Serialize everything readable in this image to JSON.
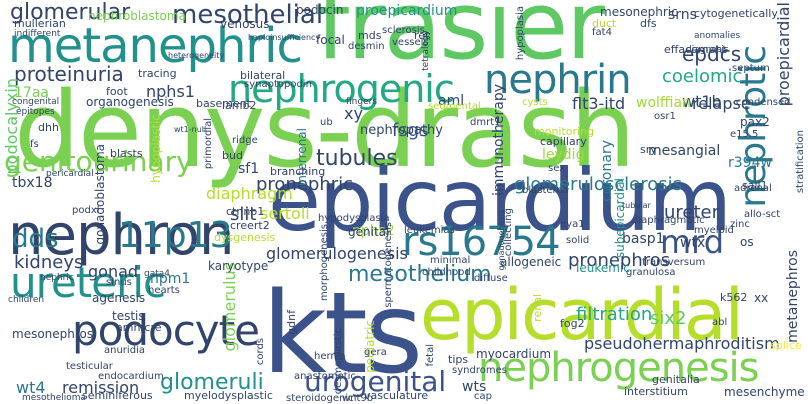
{
  "word_cloud": {
    "palette": {
      "green": "#7ad151",
      "purple": "#482878",
      "navy": "#3b528b",
      "teal": "#21918c",
      "sea": "#2a788e",
      "mint": "#5ec962",
      "lime": "#b5de2b",
      "yellow": "#fde725",
      "chart": "#addc30",
      "cyan": "#22a884",
      "olive": "#a0da39",
      "indigo": "#414487",
      "dark": "#440154"
    },
    "words": [
      {
        "text": "denys-drash",
        "color": "#7ad151"
      },
      {
        "text": "frasier",
        "color": "#5ec962"
      },
      {
        "text": "epicardium",
        "color": "#3b528b"
      },
      {
        "text": "kts",
        "color": "#3b528b"
      },
      {
        "text": "epicardial",
        "color": "#b5de2b"
      },
      {
        "text": "metanephric",
        "color": "#21918c"
      },
      {
        "text": "nephron",
        "color": "#31446b"
      },
      {
        "text": "nephrogenic",
        "color": "#22a884"
      },
      {
        "text": "nephrin",
        "color": "#2a788e"
      },
      {
        "text": "podocyte",
        "color": "#31446b"
      },
      {
        "text": "ureteric",
        "color": "#21918c"
      },
      {
        "text": "nephrogenesis",
        "color": "#7ad151"
      },
      {
        "text": "nephrotic",
        "color": "#2a788e"
      },
      {
        "text": "rs16754",
        "color": "#2a788e"
      },
      {
        "text": "11p13",
        "color": "#2a788e"
      },
      {
        "text": "dds",
        "color": "#2a788e"
      },
      {
        "text": "mrd",
        "color": "#3b528b"
      },
      {
        "text": "genitourinary",
        "color": "#7ad151"
      },
      {
        "text": "glomerular",
        "color": "#31446b"
      },
      {
        "text": "mesothelial",
        "color": "#31446b"
      },
      {
        "text": "urogenital",
        "color": "#3b528b"
      },
      {
        "text": "glomeruli",
        "color": "#21918c"
      },
      {
        "text": "mesothelium",
        "color": "#2a788e"
      },
      {
        "text": "proteinuria",
        "color": "#31446b"
      },
      {
        "text": "coelomic",
        "color": "#22a884"
      },
      {
        "text": "glomerulosclerosis",
        "color": "#2a788e"
      },
      {
        "text": "tubules",
        "color": "#31446b"
      },
      {
        "text": "epdcs",
        "color": "#31446b"
      },
      {
        "text": "wt1b",
        "color": "#31446b"
      },
      {
        "text": "relapse",
        "color": "#31446b"
      },
      {
        "text": "pronephros",
        "color": "#31446b"
      },
      {
        "text": "filtration",
        "color": "#22a884"
      },
      {
        "text": "six2",
        "color": "#5ec962"
      },
      {
        "text": "kidneys",
        "color": "#31446b"
      },
      {
        "text": "sertoli",
        "color": "#b5de2b"
      },
      {
        "text": "slit",
        "color": "#31446b"
      },
      {
        "text": "pronephric",
        "color": "#31446b"
      },
      {
        "text": "fsgs",
        "color": "#3b528b"
      },
      {
        "text": "podocalyxin",
        "color": "#5ec962"
      },
      {
        "text": "proepicardium",
        "color": "#21918c"
      },
      {
        "text": "proepicardial",
        "color": "#31446b"
      },
      {
        "text": "glomerulogenesis",
        "color": "#31446b"
      },
      {
        "text": "diaphragm",
        "color": "#b5de2b"
      },
      {
        "text": "wt4",
        "color": "#2a788e"
      },
      {
        "text": "remission",
        "color": "#31446b"
      },
      {
        "text": "gonad",
        "color": "#31446b"
      },
      {
        "text": "nphs1",
        "color": "#31446b"
      },
      {
        "text": "nphs2",
        "color": "#a0da39"
      },
      {
        "text": "basp1",
        "color": "#31446b"
      },
      {
        "text": "ureter",
        "color": "#31446b"
      },
      {
        "text": "mesangial",
        "color": "#31446b"
      },
      {
        "text": "pseudohermaphroditism",
        "color": "#31446b"
      },
      {
        "text": "flt3-itd",
        "color": "#31446b"
      },
      {
        "text": "aml",
        "color": "#31446b"
      },
      {
        "text": "xy",
        "color": "#31446b"
      },
      {
        "text": "sf1",
        "color": "#31446b"
      },
      {
        "text": "r394w",
        "color": "#2a788e"
      },
      {
        "text": "tbx18",
        "color": "#31446b"
      },
      {
        "text": "17aa",
        "color": "#7ad151"
      },
      {
        "text": "npm1",
        "color": "#2a788e"
      },
      {
        "text": "wtx",
        "color": "#31446b"
      },
      {
        "text": "mesonephric",
        "color": "#31446b"
      },
      {
        "text": "mesonephros",
        "color": "#31446b"
      },
      {
        "text": "srns",
        "color": "#31446b"
      },
      {
        "text": "wolffian",
        "color": "#a0da39"
      },
      {
        "text": "leydig",
        "color": "#a0da39"
      },
      {
        "text": "immunotherapy",
        "color": "#31446b"
      },
      {
        "text": "nephropathy",
        "color": "#31446b"
      },
      {
        "text": "coronary",
        "color": "#2a788e"
      },
      {
        "text": "metanephros",
        "color": "#31446b"
      },
      {
        "text": "nephroblastoma",
        "color": "#7ad151"
      },
      {
        "text": "mesenchyme",
        "color": "#31446b"
      },
      {
        "text": "organogenesis",
        "color": "#31446b"
      },
      {
        "text": "podocin",
        "color": "#31446b"
      },
      {
        "text": "venosus",
        "color": "#31446b"
      },
      {
        "text": "mullerian",
        "color": "#31446b"
      },
      {
        "text": "focal",
        "color": "#31446b"
      },
      {
        "text": "glomerulus",
        "color": "#7ad151"
      },
      {
        "text": "gonadoblastoma",
        "color": "#31446b"
      },
      {
        "text": "allogeneic",
        "color": "#31446b"
      },
      {
        "text": "genital",
        "color": "#31446b"
      },
      {
        "text": "leukemic",
        "color": "#21918c"
      },
      {
        "text": "testis",
        "color": "#31446b"
      },
      {
        "text": "agenesis",
        "color": "#31446b"
      },
      {
        "text": "karyotype",
        "color": "#31446b"
      },
      {
        "text": "subepicardial",
        "color": "#21918c"
      },
      {
        "text": "pediatric",
        "color": "#b5de2b"
      },
      {
        "text": "myocardium",
        "color": "#31446b"
      },
      {
        "text": "seminiferous",
        "color": "#31446b"
      },
      {
        "text": "myelodysplastic",
        "color": "#31446b"
      },
      {
        "text": "vasculature",
        "color": "#31446b"
      },
      {
        "text": "wts",
        "color": "#31446b"
      },
      {
        "text": "genitalia",
        "color": "#31446b"
      },
      {
        "text": "interstitium",
        "color": "#31446b"
      },
      {
        "text": "amh-cre",
        "color": "#31446b"
      },
      {
        "text": "foot",
        "color": "#31446b"
      },
      {
        "text": "basement",
        "color": "#31446b"
      },
      {
        "text": "bilateral",
        "color": "#31446b"
      },
      {
        "text": "tracing",
        "color": "#31446b"
      },
      {
        "text": "synaptopodin",
        "color": "#31446b"
      },
      {
        "text": "effacement",
        "color": "#31446b"
      },
      {
        "text": "cytogenetically",
        "color": "#31446b"
      },
      {
        "text": "pax2",
        "color": "#31446b"
      },
      {
        "text": "sall1",
        "color": "#31446b"
      },
      {
        "text": "k562",
        "color": "#31446b"
      },
      {
        "text": "sry",
        "color": "#31446b"
      },
      {
        "text": "capillary",
        "color": "#31446b"
      },
      {
        "text": "monitoring",
        "color": "#b5de2b"
      },
      {
        "text": "interrenal",
        "color": "#2a788e"
      },
      {
        "text": "hypoplastic",
        "color": "#b5de2b"
      },
      {
        "text": "branching",
        "color": "#31446b"
      },
      {
        "text": "blasts",
        "color": "#31446b"
      },
      {
        "text": "bud",
        "color": "#31446b"
      },
      {
        "text": "ctnnb1",
        "color": "#31446b"
      },
      {
        "text": "creert2",
        "color": "#31446b"
      },
      {
        "text": "dysgenesis",
        "color": "#b5de2b"
      },
      {
        "text": "lamb2",
        "color": "#31446b"
      },
      {
        "text": "gdnf",
        "color": "#31446b"
      },
      {
        "text": "leukemias",
        "color": "#31446b"
      },
      {
        "text": "hypodysplasia",
        "color": "#31446b"
      },
      {
        "text": "ret",
        "color": "#31446b"
      },
      {
        "text": "desmin",
        "color": "#31446b"
      },
      {
        "text": "vessels",
        "color": "#31446b"
      },
      {
        "text": "mds",
        "color": "#31446b"
      },
      {
        "text": "sclerosis",
        "color": "#31446b"
      },
      {
        "text": "duct",
        "color": "#b5de2b"
      },
      {
        "text": "dfs",
        "color": "#31446b"
      },
      {
        "text": "fat4",
        "color": "#31446b"
      },
      {
        "text": "septum",
        "color": "#31446b"
      },
      {
        "text": "condensed",
        "color": "#31446b"
      },
      {
        "text": "stratification",
        "color": "#31446b"
      },
      {
        "text": "adrenal",
        "color": "#31446b"
      },
      {
        "text": "zinc",
        "color": "#31446b"
      },
      {
        "text": "os",
        "color": "#31446b"
      },
      {
        "text": "xx",
        "color": "#31446b"
      },
      {
        "text": "abl",
        "color": "#31446b"
      },
      {
        "text": "splice",
        "color": "#fde725"
      },
      {
        "text": "transversum",
        "color": "#31446b"
      },
      {
        "text": "solid",
        "color": "#31446b"
      },
      {
        "text": "eya1",
        "color": "#31446b"
      },
      {
        "text": "myeloid",
        "color": "#31446b"
      },
      {
        "text": "allo-sct",
        "color": "#31446b"
      },
      {
        "text": "diaphragmatic",
        "color": "#31446b"
      },
      {
        "text": "granulosa",
        "color": "#31446b"
      },
      {
        "text": "fog2",
        "color": "#31446b"
      },
      {
        "text": "renal",
        "color": "#b5de2b"
      },
      {
        "text": "tips",
        "color": "#31446b"
      },
      {
        "text": "fetal",
        "color": "#31446b"
      },
      {
        "text": "gera",
        "color": "#31446b"
      },
      {
        "text": "hernia",
        "color": "#31446b"
      },
      {
        "text": "steroidogenic",
        "color": "#31446b"
      },
      {
        "text": "wnt9b",
        "color": "#31446b"
      },
      {
        "text": "cords",
        "color": "#31446b"
      },
      {
        "text": "desmoplastic",
        "color": "#31446b"
      },
      {
        "text": "anastomotic",
        "color": "#31446b"
      },
      {
        "text": "syndromes",
        "color": "#31446b"
      },
      {
        "text": "cap",
        "color": "#31446b"
      },
      {
        "text": "testicular",
        "color": "#31446b"
      },
      {
        "text": "endocardium",
        "color": "#31446b"
      },
      {
        "text": "anuridia",
        "color": "#31446b"
      },
      {
        "text": "mesothelioma",
        "color": "#31446b"
      },
      {
        "text": "sinus",
        "color": "#31446b"
      },
      {
        "text": "hearts",
        "color": "#31446b"
      },
      {
        "text": "childhood",
        "color": "#31446b"
      },
      {
        "text": "minimal",
        "color": "#31446b"
      },
      {
        "text": "collecting",
        "color": "#31446b"
      },
      {
        "text": "diffuse",
        "color": "#31446b"
      },
      {
        "text": "morphogenesis",
        "color": "#31446b"
      },
      {
        "text": "spermatogenesis",
        "color": "#31446b"
      },
      {
        "text": "podxl",
        "color": "#31446b"
      },
      {
        "text": "pericardial",
        "color": "#31446b"
      },
      {
        "text": "children",
        "color": "#31446b"
      },
      {
        "text": "nephric",
        "color": "#31446b"
      },
      {
        "text": "gata4",
        "color": "#31446b"
      },
      {
        "text": "dhh",
        "color": "#31446b"
      },
      {
        "text": "fs",
        "color": "#31446b"
      },
      {
        "text": "ridge",
        "color": "#31446b"
      },
      {
        "text": "primordial",
        "color": "#31446b"
      },
      {
        "text": "ub",
        "color": "#31446b"
      },
      {
        "text": "dmrt1",
        "color": "#31446b"
      },
      {
        "text": "sex",
        "color": "#31446b"
      },
      {
        "text": "blastema",
        "color": "#31446b"
      },
      {
        "text": "fingers",
        "color": "#31446b"
      },
      {
        "text": "segmental",
        "color": "#b5de2b"
      },
      {
        "text": "cysts",
        "color": "#b5de2b"
      },
      {
        "text": "osr1",
        "color": "#31446b"
      },
      {
        "text": "e15.5",
        "color": "#31446b"
      },
      {
        "text": "congenital",
        "color": "#31446b"
      },
      {
        "text": "epitopes",
        "color": "#31446b"
      },
      {
        "text": "indifferent",
        "color": "#31446b"
      },
      {
        "text": "hypoplasia",
        "color": "#31446b"
      },
      {
        "text": "diagnosis",
        "color": "#31446b"
      },
      {
        "text": "anomalies",
        "color": "#31446b"
      },
      {
        "text": "tetralogy",
        "color": "#31446b"
      },
      {
        "text": "haploinsufficiency",
        "color": "#31446b"
      },
      {
        "text": "gonadogenesis",
        "color": "#31446b"
      },
      {
        "text": "heterogeneity",
        "color": "#31446b"
      },
      {
        "text": "wt1-null",
        "color": "#31446b"
      },
      {
        "text": "tubular",
        "color": "#31446b"
      }
    ]
  }
}
